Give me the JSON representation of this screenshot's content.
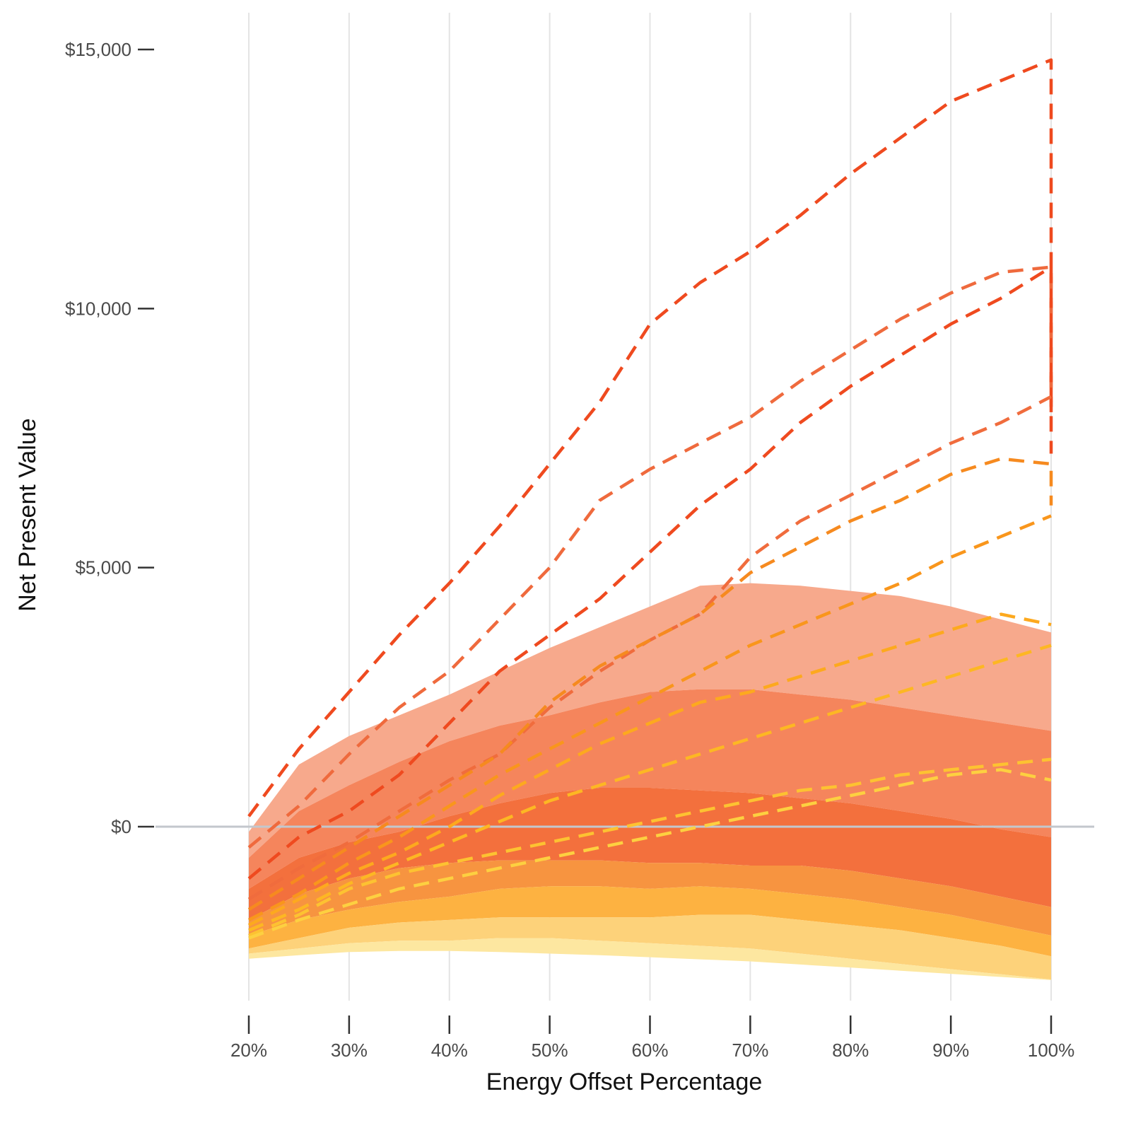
{
  "chart_data": {
    "type": "area",
    "xlabel": "Energy Offset Percentage",
    "ylabel": "Net Present Value",
    "x": [
      20,
      25,
      30,
      35,
      40,
      45,
      50,
      55,
      60,
      65,
      70,
      75,
      80,
      85,
      90,
      95,
      100
    ],
    "x_ticks": [
      20,
      30,
      40,
      50,
      60,
      70,
      80,
      90,
      100
    ],
    "x_tick_labels": [
      "20%",
      "30%",
      "40%",
      "50%",
      "60%",
      "70%",
      "80%",
      "90%",
      "100%"
    ],
    "xlim": [
      20,
      100
    ],
    "y_ticks": [
      0,
      5000,
      10000,
      15000
    ],
    "y_tick_labels": [
      "$0",
      "$5,000",
      "$10,000",
      "$15,000"
    ],
    "ylim": [
      -3400,
      15700
    ],
    "grid": "vertical gridlines",
    "zero_line_color": "#c3c7cd",
    "bands": [
      {
        "color": "#f7a98c",
        "upper": [
          -100,
          1200,
          1750,
          2150,
          2550,
          3000,
          3450,
          3850,
          4250,
          4650,
          4700,
          4650,
          4550,
          4450,
          4250,
          4000,
          3750
        ],
        "lower": [
          -600,
          300,
          800,
          1250,
          1650,
          1950,
          2150,
          2400,
          2600,
          2650,
          2650,
          2550,
          2450,
          2300,
          2150,
          2000,
          1850
        ]
      },
      {
        "color": "#f5855c",
        "upper": [
          -600,
          300,
          800,
          1250,
          1650,
          1950,
          2150,
          2400,
          2600,
          2650,
          2650,
          2550,
          2450,
          2300,
          2150,
          2000,
          1850
        ],
        "lower": [
          -1200,
          -600,
          -300,
          -100,
          200,
          450,
          650,
          750,
          750,
          700,
          650,
          550,
          450,
          300,
          150,
          -50,
          -200
        ]
      },
      {
        "color": "#f3703d",
        "upper": [
          -1200,
          -600,
          -300,
          -100,
          200,
          450,
          650,
          750,
          750,
          700,
          650,
          550,
          450,
          300,
          150,
          -50,
          -200
        ],
        "lower": [
          -1800,
          -1300,
          -1000,
          -800,
          -700,
          -650,
          -650,
          -650,
          -700,
          -700,
          -750,
          -750,
          -850,
          -1000,
          -1150,
          -1350,
          -1550
        ]
      },
      {
        "color": "#f79440",
        "upper": [
          -1800,
          -1300,
          -1000,
          -800,
          -700,
          -650,
          -650,
          -650,
          -700,
          -700,
          -750,
          -750,
          -850,
          -1000,
          -1150,
          -1350,
          -1550
        ],
        "lower": [
          -2100,
          -1800,
          -1600,
          -1450,
          -1350,
          -1200,
          -1150,
          -1150,
          -1200,
          -1150,
          -1200,
          -1300,
          -1400,
          -1550,
          -1700,
          -1900,
          -2100
        ]
      },
      {
        "color": "#fdb241",
        "upper": [
          -2100,
          -1800,
          -1600,
          -1450,
          -1350,
          -1200,
          -1150,
          -1150,
          -1200,
          -1150,
          -1200,
          -1300,
          -1400,
          -1550,
          -1700,
          -1900,
          -2100
        ],
        "lower": [
          -2350,
          -2150,
          -1950,
          -1850,
          -1800,
          -1750,
          -1750,
          -1750,
          -1750,
          -1700,
          -1700,
          -1800,
          -1900,
          -2000,
          -2150,
          -2300,
          -2500
        ]
      },
      {
        "color": "#fdd27a",
        "upper": [
          -2350,
          -2150,
          -1950,
          -1850,
          -1800,
          -1750,
          -1750,
          -1750,
          -1750,
          -1700,
          -1700,
          -1800,
          -1900,
          -2000,
          -2150,
          -2300,
          -2500
        ],
        "lower": [
          -2450,
          -2350,
          -2250,
          -2200,
          -2200,
          -2150,
          -2150,
          -2200,
          -2250,
          -2300,
          -2350,
          -2450,
          -2550,
          -2650,
          -2750,
          -2850,
          -2950
        ]
      },
      {
        "color": "#fde7a0",
        "upper": [
          -2450,
          -2350,
          -2250,
          -2200,
          -2200,
          -2150,
          -2150,
          -2200,
          -2250,
          -2300,
          -2350,
          -2450,
          -2550,
          -2650,
          -2750,
          -2850,
          -2950
        ],
        "lower": [
          -2550,
          -2480,
          -2420,
          -2400,
          -2400,
          -2420,
          -2450,
          -2480,
          -2520,
          -2560,
          -2600,
          -2660,
          -2720,
          -2780,
          -2840,
          -2900,
          -2960
        ]
      }
    ],
    "dashed_series": [
      {
        "color": "#ef4a1f",
        "y": [
          200,
          1500,
          2600,
          3700,
          4700,
          5800,
          7000,
          8200,
          9700,
          10500,
          11100,
          11800,
          12600,
          13300,
          14000,
          14400,
          14800
        ],
        "y_end": 8000
      },
      {
        "color": "#ef6a3d",
        "y": [
          -400,
          400,
          1400,
          2300,
          3000,
          4000,
          5000,
          6300,
          6900,
          7400,
          7900,
          8600,
          9200,
          9800,
          10300,
          10700,
          10800
        ],
        "y_end": 8200
      },
      {
        "color": "#ef4a1f",
        "y": [
          -1000,
          -200,
          300,
          1000,
          2000,
          3000,
          3700,
          4400,
          5300,
          6200,
          6900,
          7800,
          8500,
          9100,
          9700,
          10200,
          10800
        ],
        "y_end": 7200
      },
      {
        "color": "#f06c3d",
        "y": [
          -1400,
          -800,
          -300,
          300,
          900,
          1400,
          2300,
          3000,
          3600,
          4100,
          5200,
          5900,
          6400,
          6900,
          7400,
          7800,
          8300
        ]
      },
      {
        "color": "#f68a1f",
        "y": [
          -1600,
          -1000,
          -400,
          200,
          800,
          1400,
          2400,
          3100,
          3600,
          4100,
          4900,
          5400,
          5900,
          6300,
          6800,
          7100,
          7000
        ],
        "y_end": 6200
      },
      {
        "color": "#f9961c",
        "y": [
          -1800,
          -1300,
          -700,
          -200,
          400,
          1000,
          1500,
          2000,
          2500,
          3000,
          3500,
          3900,
          4300,
          4700,
          5200,
          5600,
          6000
        ]
      },
      {
        "color": "#fda91e",
        "y": [
          -1900,
          -1400,
          -900,
          -500,
          0,
          600,
          1100,
          1600,
          2000,
          2400,
          2600,
          2900,
          3200,
          3500,
          3800,
          4100,
          3900
        ]
      },
      {
        "color": "#fdb723",
        "y": [
          -2000,
          -1600,
          -1100,
          -700,
          -300,
          100,
          500,
          800,
          1100,
          1400,
          1700,
          2000,
          2300,
          2600,
          2900,
          3200,
          3500
        ]
      },
      {
        "color": "#fdc231",
        "y": [
          -2100,
          -1700,
          -1200,
          -900,
          -700,
          -500,
          -300,
          -100,
          100,
          300,
          500,
          700,
          800,
          1000,
          1100,
          1200,
          1300
        ]
      },
      {
        "color": "#fdd040",
        "y": [
          -2150,
          -1800,
          -1500,
          -1200,
          -1000,
          -800,
          -600,
          -400,
          -200,
          0,
          200,
          400,
          600,
          800,
          1000,
          1100,
          900
        ]
      }
    ]
  }
}
